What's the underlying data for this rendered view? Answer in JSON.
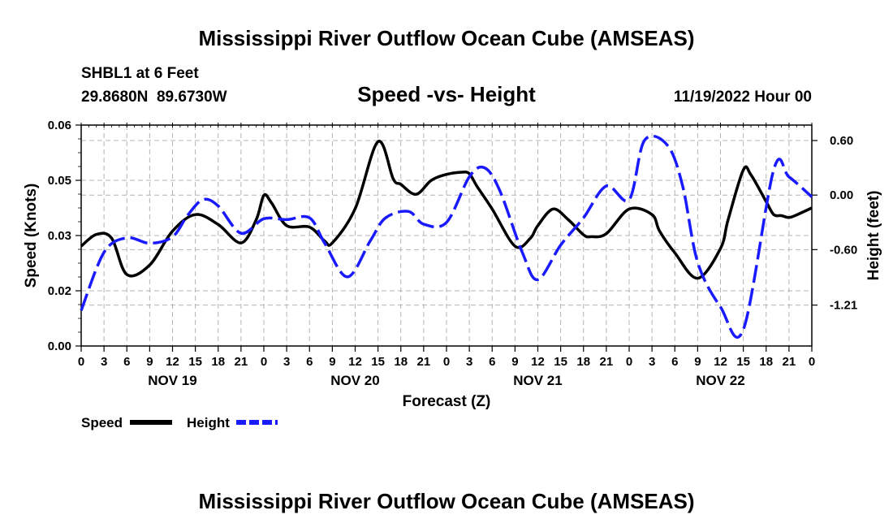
{
  "header": {
    "title": "Mississippi River Outflow Ocean Cube (AMSEAS)",
    "station": "SHBL1 at 6 Feet",
    "coords": "29.8680N  89.6730W",
    "subtitle": "Speed -vs- Height",
    "datetime": "11/19/2022 Hour 00"
  },
  "footer": {
    "title": "Mississippi River Outflow Ocean Cube (AMSEAS)"
  },
  "legend": {
    "speed_label": "Speed",
    "height_label": "Height"
  },
  "chart_data": {
    "type": "line",
    "title": "Speed -vs- Height",
    "xlabel": "Forecast (Z)",
    "ylabel": "Speed (Knots)",
    "y2label": "Height (feet)",
    "xlim": [
      0,
      96
    ],
    "ylim": [
      0,
      0.06
    ],
    "y2lim": [
      -1.66,
      0.77
    ],
    "x_ticks": [
      0,
      3,
      6,
      9,
      12,
      15,
      18,
      21,
      24,
      27,
      30,
      33,
      36,
      39,
      42,
      45,
      48,
      51,
      54,
      57,
      60,
      63,
      66,
      69,
      72,
      75,
      78,
      81,
      84,
      87,
      90,
      93,
      96
    ],
    "x_tick_labels": [
      "0",
      "3",
      "6",
      "9",
      "12",
      "15",
      "18",
      "21",
      "0",
      "3",
      "6",
      "9",
      "12",
      "15",
      "18",
      "21",
      "0",
      "3",
      "6",
      "9",
      "12",
      "15",
      "18",
      "21",
      "0",
      "3",
      "6",
      "9",
      "12",
      "15",
      "18",
      "21",
      "0"
    ],
    "day_labels": [
      {
        "hour": 12,
        "label": "NOV 19"
      },
      {
        "hour": 36,
        "label": "NOV 20"
      },
      {
        "hour": 60,
        "label": "NOV 21"
      },
      {
        "hour": 84,
        "label": "NOV 22"
      }
    ],
    "y_ticks": [
      0.0,
      0.02,
      0.03,
      0.05,
      0.06
    ],
    "y_tick_labels": [
      "0.00",
      "0.02",
      "0.03",
      "0.05",
      "0.06"
    ],
    "y_tick_positions": [
      0.0,
      0.015,
      0.03,
      0.045,
      0.06
    ],
    "y2_ticks": [
      0.6,
      0.0,
      -0.6,
      -1.21
    ],
    "y2_tick_labels": [
      "0.60",
      "0.00",
      "-0.60",
      "-1.21"
    ],
    "series": [
      {
        "name": "Speed",
        "axis": "left",
        "color": "#000000",
        "dash": "solid",
        "x": [
          0,
          2,
          4,
          6,
          9,
          12,
          15,
          18,
          21,
          23,
          24,
          25,
          27,
          30,
          32,
          33,
          36,
          39,
          41,
          42,
          44,
          46,
          48,
          50,
          51,
          52,
          54,
          57,
          59,
          60,
          62,
          64,
          66,
          67,
          69,
          72,
          75,
          76,
          78,
          81,
          84,
          85,
          87,
          88,
          90,
          91,
          92,
          93,
          94,
          96
        ],
        "values": [
          0.0271,
          0.0303,
          0.0293,
          0.0194,
          0.022,
          0.0312,
          0.0357,
          0.033,
          0.028,
          0.0343,
          0.0409,
          0.0389,
          0.0327,
          0.0323,
          0.0285,
          0.028,
          0.0373,
          0.0555,
          0.0454,
          0.0439,
          0.0412,
          0.045,
          0.0466,
          0.0472,
          0.0468,
          0.0434,
          0.0372,
          0.0271,
          0.0292,
          0.0327,
          0.0372,
          0.0343,
          0.0302,
          0.0297,
          0.0305,
          0.0372,
          0.0357,
          0.0312,
          0.0253,
          0.0184,
          0.0265,
          0.0343,
          0.0478,
          0.0465,
          0.0392,
          0.0357,
          0.0354,
          0.0349,
          0.0356,
          0.0375
        ]
      },
      {
        "name": "Height",
        "axis": "right",
        "color": "#1a1aff",
        "dash": "dashed",
        "x": [
          0,
          3,
          6,
          9,
          12,
          14,
          16,
          18,
          21,
          24,
          27,
          30,
          32,
          35,
          38,
          40,
          43,
          45,
          48,
          51,
          53,
          55,
          58,
          60,
          63,
          66,
          69,
          72,
          74,
          77,
          79,
          81,
          84,
          87,
          91,
          93,
          96
        ],
        "values": [
          -1.27,
          -0.63,
          -0.47,
          -0.53,
          -0.46,
          -0.22,
          -0.05,
          -0.12,
          -0.42,
          -0.26,
          -0.27,
          -0.25,
          -0.53,
          -0.9,
          -0.5,
          -0.25,
          -0.18,
          -0.32,
          -0.3,
          0.2,
          0.3,
          0.05,
          -0.64,
          -0.93,
          -0.55,
          -0.25,
          0.1,
          -0.05,
          0.6,
          0.55,
          0.11,
          -0.74,
          -1.23,
          -1.48,
          0.28,
          0.2,
          -0.02
        ]
      }
    ]
  }
}
